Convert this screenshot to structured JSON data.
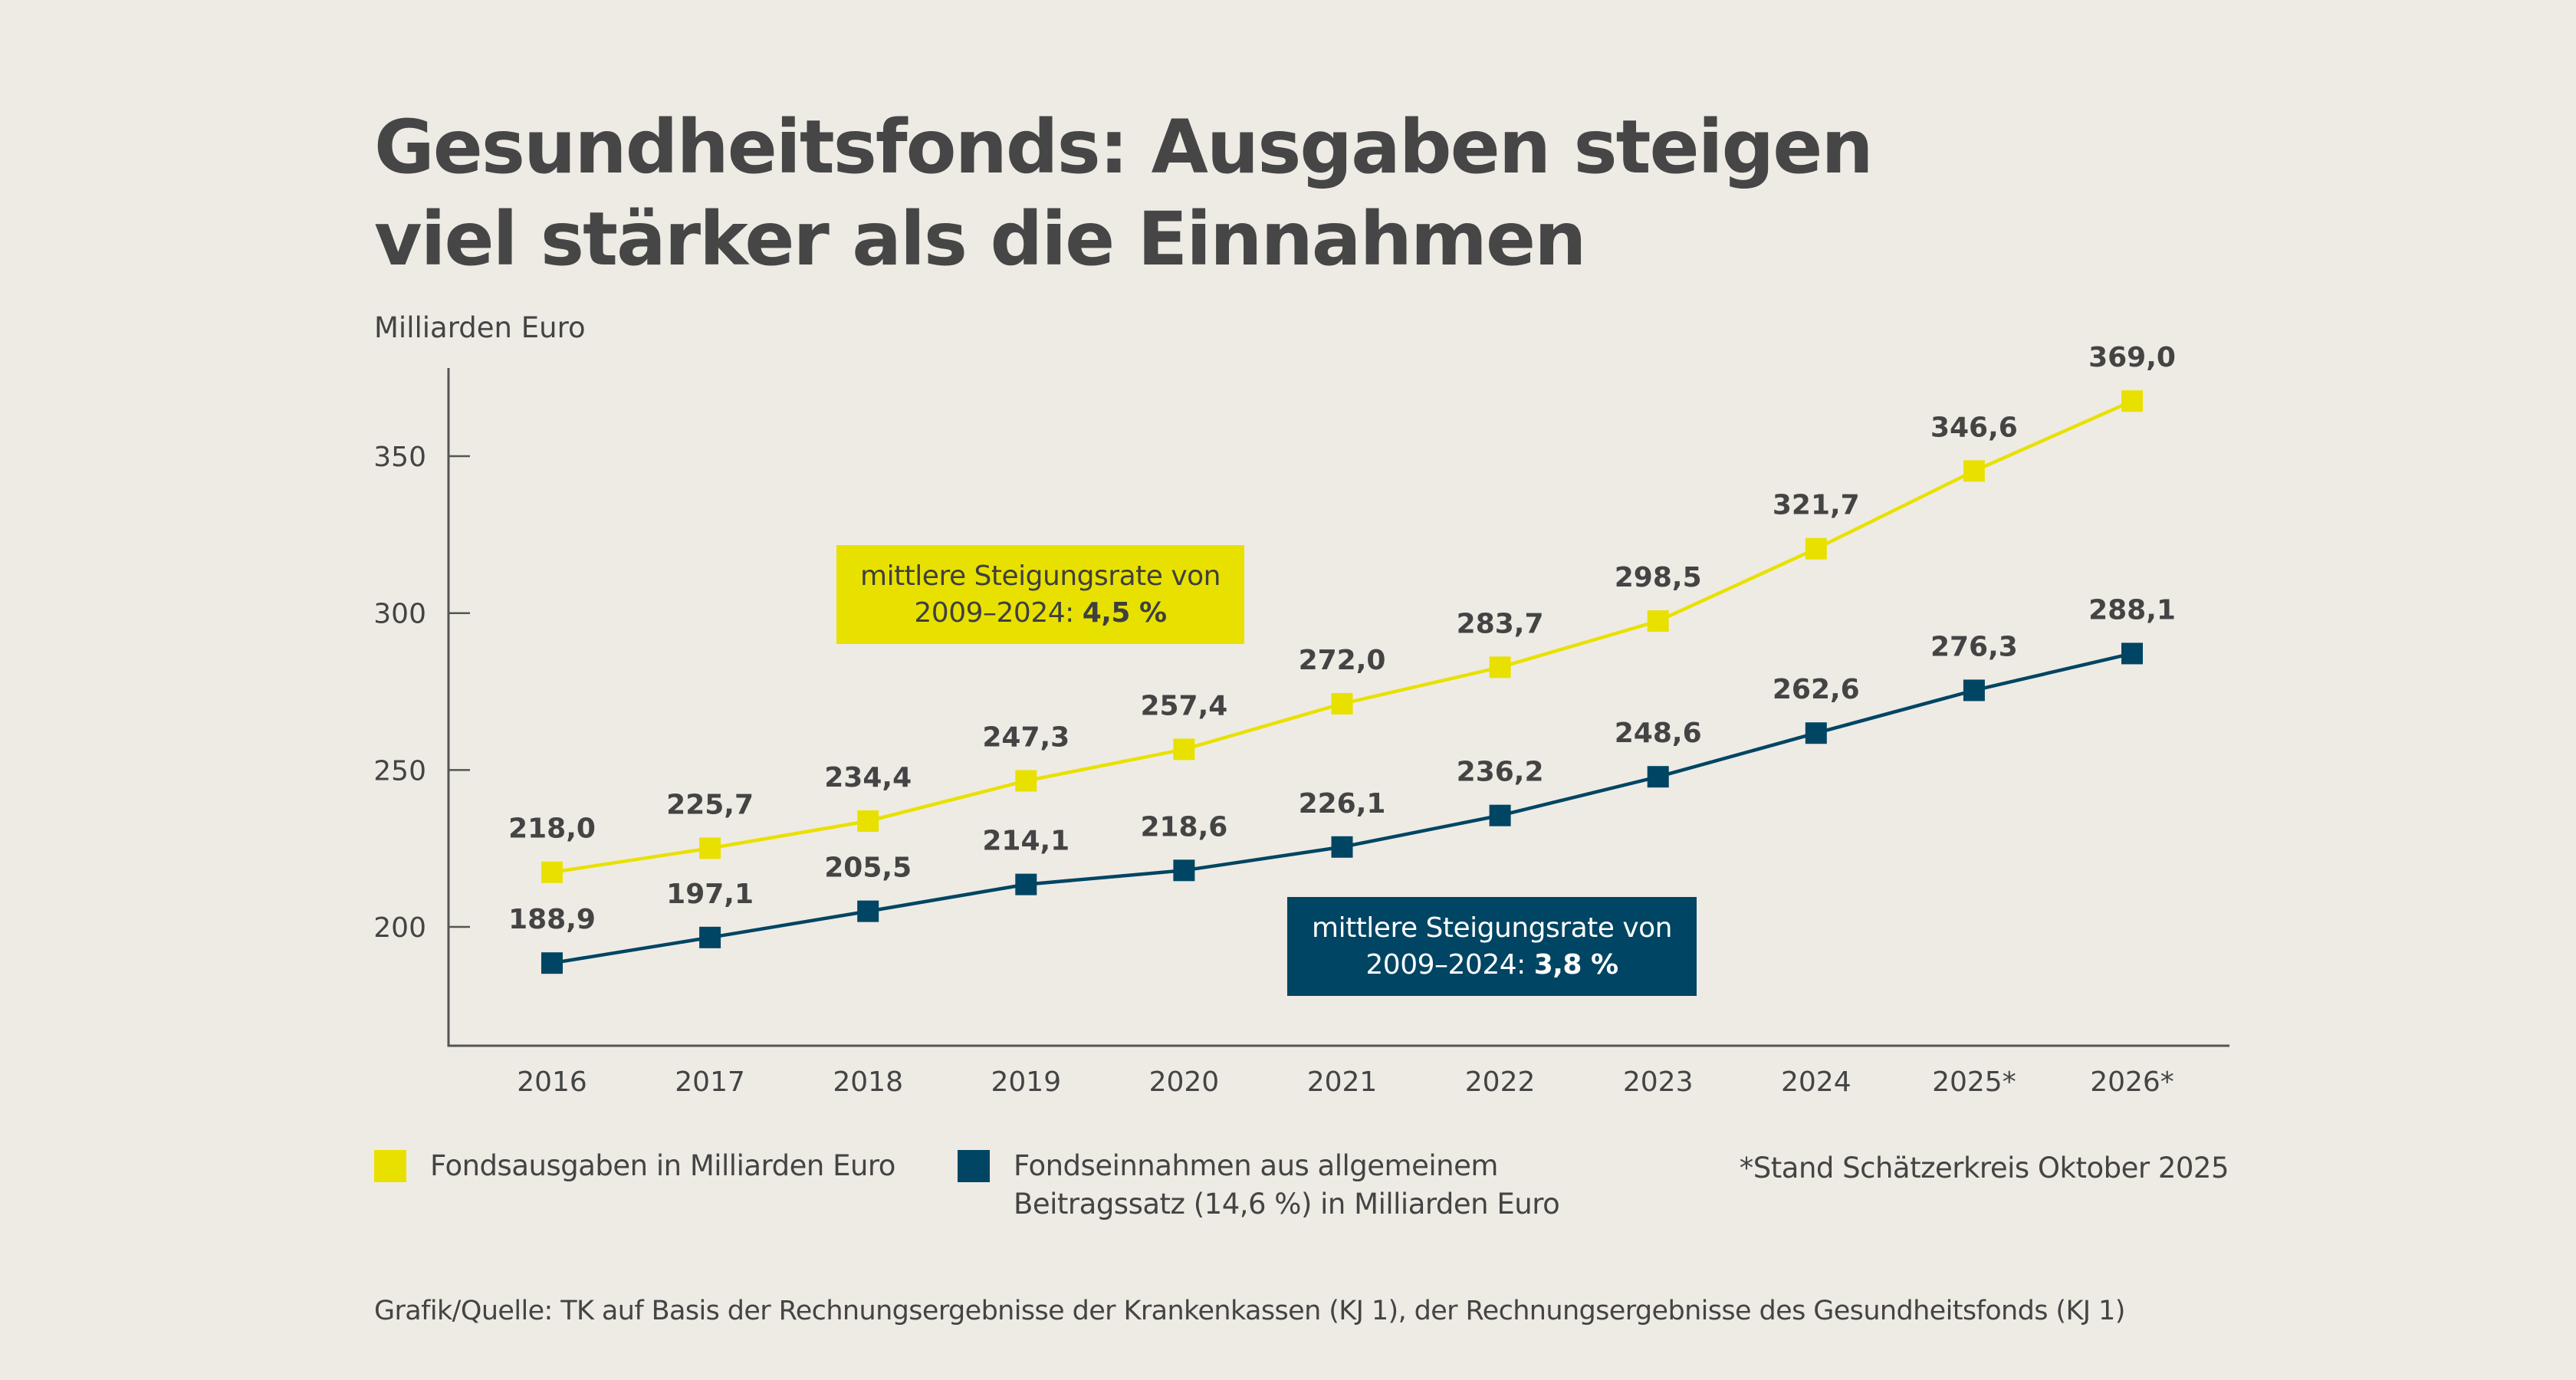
{
  "title": {
    "line1": "Gesundheitsfonds: Ausgaben steigen",
    "line2": "viel stärker als die Einnahmen"
  },
  "annotations": {
    "ausgaben": {
      "line1": "mittlere Steigungsrate von",
      "line2_prefix": "2009–2024: ",
      "line2_value": "4,5 %"
    },
    "einnahmen": {
      "line1": "mittlere Steigungsrate von",
      "line2_prefix": "2009–2024: ",
      "line2_value": "3,8 %"
    }
  },
  "legend": {
    "ausgaben": "Fondsausgaben in Milliarden Euro",
    "einnahmen_line1": "Fondseinnahmen aus allgemeinem",
    "einnahmen_line2": "Beitragssatz (14,6 %) in Milliarden Euro"
  },
  "footnote": "*Stand Schätzerkreis Oktober 2025",
  "source": "Grafik/Quelle: TK auf Basis der Rechnungsergebnisse der Krankenkassen (KJ 1), der Rechnungsergebnisse des Gesundheitsfonds (KJ 1)",
  "colors": {
    "ausgaben": "#E8E100",
    "einnahmen": "#004563",
    "axis": "#555555",
    "text": "#444444",
    "background": "#EEEBE5"
  },
  "chart_data": {
    "type": "line",
    "title": "Gesundheitsfonds: Ausgaben steigen viel stärker als die Einnahmen",
    "xlabel": "",
    "ylabel": "Milliarden Euro",
    "categories": [
      "2016",
      "2017",
      "2018",
      "2019",
      "2020",
      "2021",
      "2022",
      "2023",
      "2024",
      "2025*",
      "2026*"
    ],
    "yticks": [
      200,
      250,
      300,
      350
    ],
    "ylim": [
      162,
      378
    ],
    "grid": false,
    "legend_position": "bottom",
    "series": [
      {
        "name": "Fondsausgaben in Milliarden Euro",
        "key": "ausgaben",
        "values": [
          218.0,
          225.7,
          234.4,
          247.3,
          257.4,
          272.0,
          283.7,
          298.5,
          321.7,
          346.6,
          369.0
        ],
        "labels": [
          "218,0",
          "225,7",
          "234,4",
          "247,3",
          "257,4",
          "272,0",
          "283,7",
          "298,5",
          "321,7",
          "346,6",
          "369,0"
        ]
      },
      {
        "name": "Fondseinnahmen aus allgemeinem Beitragssatz (14,6 %) in Milliarden Euro",
        "key": "einnahmen",
        "values": [
          188.9,
          197.1,
          205.5,
          214.1,
          218.6,
          226.1,
          236.2,
          248.6,
          262.6,
          276.3,
          288.1
        ],
        "labels": [
          "188,9",
          "197,1",
          "205,5",
          "214,1",
          "218,6",
          "226,1",
          "236,2",
          "248,6",
          "262,6",
          "276,3",
          "288,1"
        ]
      }
    ],
    "annotations": [
      "mittlere Steigungsrate von 2009–2024: 4,5 %",
      "mittlere Steigungsrate von 2009–2024: 3,8 %"
    ],
    "footnote": "*Stand Schätzerkreis Oktober 2025"
  }
}
